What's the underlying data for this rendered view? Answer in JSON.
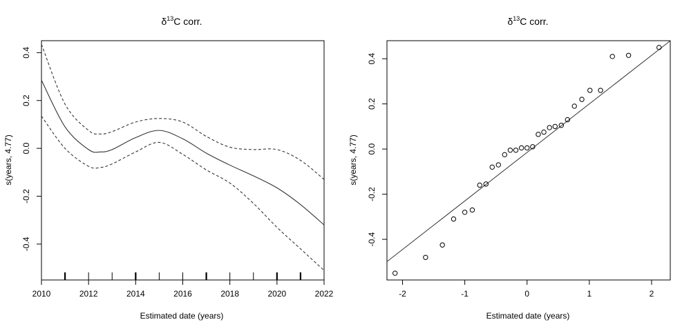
{
  "chart_data": [
    {
      "type": "line",
      "title": "δ13C corr.",
      "title_main": "δ",
      "title_sup": "13",
      "title_rest": "C corr.",
      "xlabel": "Estimated date (years)",
      "ylabel": "s(years, 4.77)",
      "xlim": [
        2010,
        2022
      ],
      "ylim": [
        -0.55,
        0.45
      ],
      "xticks": [
        2010,
        2012,
        2014,
        2016,
        2018,
        2020,
        2022
      ],
      "yticks": [
        -0.4,
        -0.2,
        0.0,
        0.2,
        0.4
      ],
      "xtick_labels": [
        "2010",
        "2012",
        "2014",
        "2016",
        "2018",
        "2020",
        "2022"
      ],
      "ytick_labels": [
        "-0.4",
        "-0.2",
        "0.0",
        "0.2",
        "0.4"
      ],
      "grid": false,
      "series": [
        {
          "role": "fit",
          "line": "solid",
          "x": [
            2010,
            2011,
            2012,
            2012.5,
            2013,
            2014,
            2015,
            2016,
            2017,
            2018,
            2019,
            2020,
            2021,
            2022
          ],
          "y": [
            0.285,
            0.09,
            -0.005,
            -0.015,
            -0.005,
            0.045,
            0.075,
            0.04,
            -0.02,
            -0.07,
            -0.115,
            -0.165,
            -0.235,
            -0.32
          ]
        },
        {
          "role": "upper-band",
          "line": "dashed",
          "x": [
            2010,
            2011,
            2012,
            2012.5,
            2013,
            2014,
            2015,
            2016,
            2017,
            2018,
            2019,
            2020,
            2021,
            2022
          ],
          "y": [
            0.435,
            0.185,
            0.075,
            0.06,
            0.07,
            0.11,
            0.125,
            0.11,
            0.05,
            0.005,
            -0.005,
            -0.005,
            -0.05,
            -0.13
          ]
        },
        {
          "role": "lower-band",
          "line": "dashed",
          "x": [
            2010,
            2011,
            2012,
            2012.5,
            2013,
            2014,
            2015,
            2016,
            2017,
            2018,
            2019,
            2020,
            2021,
            2022
          ],
          "y": [
            0.135,
            0.0,
            -0.075,
            -0.08,
            -0.065,
            -0.015,
            0.025,
            -0.025,
            -0.09,
            -0.145,
            -0.23,
            -0.33,
            -0.42,
            -0.51
          ]
        }
      ],
      "rug": [
        2010,
        2011,
        2012,
        2013,
        2014,
        2015,
        2016,
        2017,
        2018,
        2019,
        2020,
        2021,
        2022
      ],
      "rug_strong": [
        2011,
        2014,
        2017,
        2020,
        2021
      ]
    },
    {
      "type": "scatter",
      "title": "δ13C corr.",
      "title_main": "δ",
      "title_sup": "13",
      "title_rest": "C corr.",
      "xlabel": "Estimated date (years)",
      "ylabel": "s(years, 4.77)",
      "xlim": [
        -2.25,
        2.3
      ],
      "ylim": [
        -0.58,
        0.48
      ],
      "xticks": [
        -2,
        -1,
        0,
        1,
        2
      ],
      "yticks": [
        -0.4,
        -0.2,
        0.0,
        0.2,
        0.4
      ],
      "xtick_labels": [
        "-2",
        "-1",
        "0",
        "1",
        "2"
      ],
      "ytick_labels": [
        "-0.4",
        "-0.2",
        "0.0",
        "0.2",
        "0.4"
      ],
      "grid": false,
      "points": [
        {
          "x": -2.12,
          "y": -0.55
        },
        {
          "x": -1.63,
          "y": -0.48
        },
        {
          "x": -1.36,
          "y": -0.425
        },
        {
          "x": -1.18,
          "y": -0.31
        },
        {
          "x": -1.0,
          "y": -0.28
        },
        {
          "x": -0.88,
          "y": -0.27
        },
        {
          "x": -0.76,
          "y": -0.16
        },
        {
          "x": -0.66,
          "y": -0.155
        },
        {
          "x": -0.56,
          "y": -0.08
        },
        {
          "x": -0.46,
          "y": -0.07
        },
        {
          "x": -0.36,
          "y": -0.025
        },
        {
          "x": -0.27,
          "y": -0.005
        },
        {
          "x": -0.18,
          "y": -0.005
        },
        {
          "x": -0.09,
          "y": 0.005
        },
        {
          "x": 0.0,
          "y": 0.005
        },
        {
          "x": 0.09,
          "y": 0.01
        },
        {
          "x": 0.18,
          "y": 0.065
        },
        {
          "x": 0.27,
          "y": 0.075
        },
        {
          "x": 0.36,
          "y": 0.095
        },
        {
          "x": 0.45,
          "y": 0.1
        },
        {
          "x": 0.55,
          "y": 0.105
        },
        {
          "x": 0.65,
          "y": 0.13
        },
        {
          "x": 0.76,
          "y": 0.19
        },
        {
          "x": 0.88,
          "y": 0.22
        },
        {
          "x": 1.01,
          "y": 0.26
        },
        {
          "x": 1.18,
          "y": 0.26
        },
        {
          "x": 1.37,
          "y": 0.41
        },
        {
          "x": 1.63,
          "y": 0.415
        },
        {
          "x": 2.12,
          "y": 0.45
        }
      ],
      "reference_line": {
        "slope": 0.215,
        "intercept": -0.015
      }
    }
  ]
}
